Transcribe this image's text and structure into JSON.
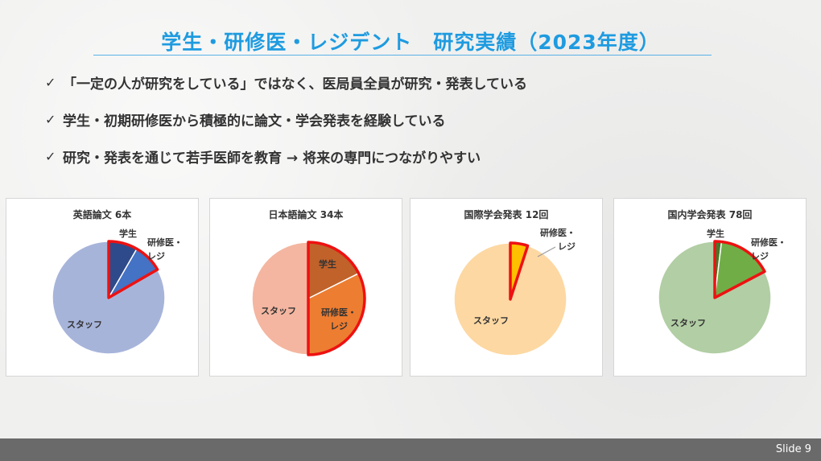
{
  "title": "学生・研修医・レジデント　研究実績（2023年度）",
  "bullets": [
    "「一定の人が研究をしている」ではなく、医局員全員が研究・発表している",
    "学生・初期研修医から積極的に論文・学会発表を経験している",
    "研究・発表を通じて若手医師を教育 → 将来の専門につながりやすい"
  ],
  "check_icon": "✓",
  "footer": {
    "slide": "Slide 9"
  },
  "colors": {
    "title": "#1e9be0",
    "highlight_border": "#ee1111"
  },
  "chart_data": [
    {
      "type": "pie",
      "title": "英語論文 6本",
      "slices": [
        {
          "label": "学生",
          "value": 0.5,
          "color": "#2f4a8a",
          "highlight": true
        },
        {
          "label": "研修医・\nレジ",
          "value": 0.5,
          "color": "#4472c4",
          "highlight": true
        },
        {
          "label": "スタッフ",
          "value": 5,
          "color": "#a7b4da",
          "highlight": false
        }
      ]
    },
    {
      "type": "pie",
      "title": "日本語論文 34本",
      "slices": [
        {
          "label": "学生",
          "value": 6,
          "color": "#c0622a",
          "highlight": true
        },
        {
          "label": "研修医・\nレジ",
          "value": 11,
          "color": "#ed7d31",
          "highlight": true
        },
        {
          "label": "スタッフ",
          "value": 17,
          "color": "#f4b6a0",
          "highlight": false
        }
      ]
    },
    {
      "type": "pie",
      "title": "国際学会発表 12回",
      "slices": [
        {
          "label": "研修医・\nレジ",
          "value": 0.6,
          "color": "#ffc000",
          "highlight": true
        },
        {
          "label": "スタッフ",
          "value": 11.4,
          "color": "#fdd8a2",
          "highlight": false
        }
      ]
    },
    {
      "type": "pie",
      "title": "国内学会発表 78回",
      "slices": [
        {
          "label": "学生",
          "value": 1.5,
          "color": "#3e7a2a",
          "highlight": true
        },
        {
          "label": "研修医・\nレジ",
          "value": 12,
          "color": "#70ad47",
          "highlight": true
        },
        {
          "label": "スタッフ",
          "value": 64.5,
          "color": "#b2cea4",
          "highlight": false
        }
      ]
    }
  ]
}
